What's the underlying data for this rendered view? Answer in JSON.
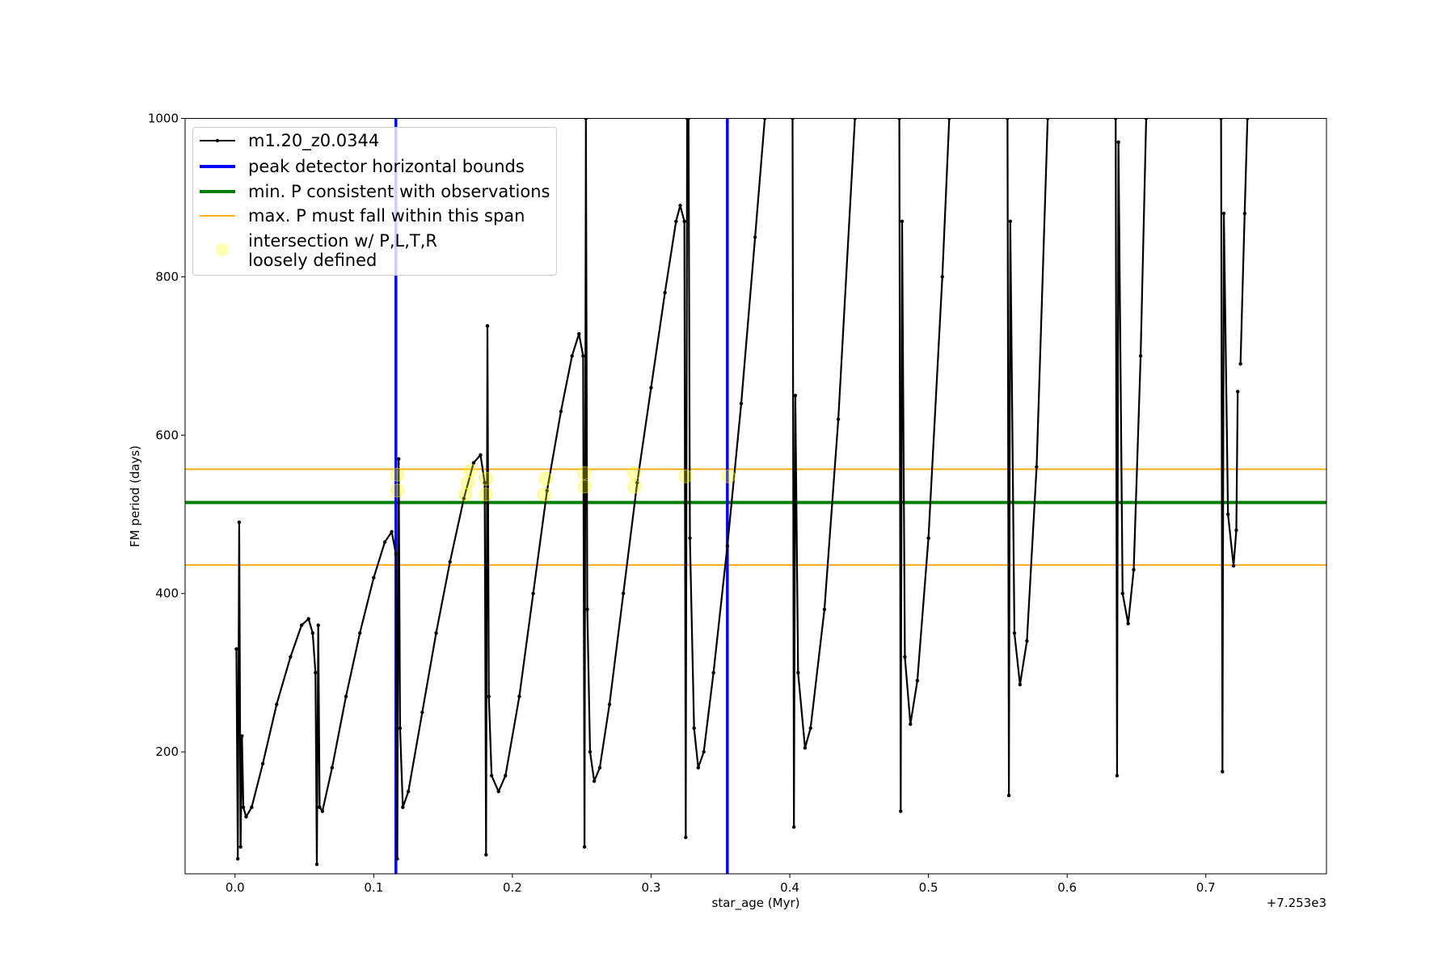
{
  "chart_data": {
    "type": "line",
    "x_label": "star_age (Myr)",
    "y_label": "FM period (days)",
    "x_offset_label": "+7.253e3",
    "xlim": [
      -0.036,
      0.787
    ],
    "ylim": [
      46,
      1000
    ],
    "xticks": [
      {
        "value": 0,
        "label": "0.0"
      },
      0.1,
      0.2,
      0.3,
      0.4,
      0.5,
      0.6,
      0.7
    ],
    "yticks": [
      200,
      400,
      600,
      800,
      1000
    ],
    "series": [
      {
        "name": "m1.20_z0.0344",
        "color": "#000000",
        "kind": "line",
        "x": [
          0.001,
          0.002,
          0.003,
          0.004,
          0.005,
          0.006,
          0.008,
          0.012,
          0.02,
          0.03,
          0.04,
          0.048,
          0.053,
          0.056,
          0.058,
          0.059,
          0.06,
          0.061,
          0.063,
          0.07,
          0.08,
          0.09,
          0.1,
          0.108,
          0.113,
          0.116,
          0.117,
          0.118,
          0.119,
          0.121,
          0.125,
          0.135,
          0.145,
          0.155,
          0.165,
          0.172,
          0.177,
          0.18,
          0.181,
          0.182,
          0.183,
          0.185,
          0.19,
          0.195,
          0.205,
          0.215,
          0.225,
          0.235,
          0.243,
          0.248,
          0.251,
          0.252,
          0.253,
          null,
          0.253,
          0.254,
          0.256,
          0.259,
          0.263,
          0.27,
          0.28,
          0.29,
          0.3,
          0.31,
          0.318,
          0.321,
          0.324,
          0.325,
          0.326,
          null,
          0.327,
          0.328,
          0.331,
          0.334,
          0.338,
          0.345,
          0.355,
          0.365,
          0.375,
          0.382,
          null,
          0.402,
          0.403,
          0.404,
          0.406,
          0.411,
          0.415,
          0.425,
          0.435,
          0.447,
          null,
          0.479,
          0.48,
          0.481,
          0.483,
          0.487,
          0.492,
          0.5,
          0.51,
          0.515,
          null,
          0.557,
          0.558,
          0.559,
          0.562,
          0.566,
          0.571,
          0.578,
          0.586,
          null,
          0.635,
          0.636,
          0.637,
          0.64,
          0.644,
          0.648,
          0.653,
          0.657,
          null,
          0.711,
          0.712,
          0.713,
          0.716,
          0.72,
          0.722,
          0.723,
          null,
          0.725,
          0.728,
          0.73
        ],
        "values": [
          330,
          65,
          490,
          80,
          220,
          130,
          118,
          130,
          185,
          260,
          320,
          360,
          368,
          350,
          300,
          58,
          360,
          130,
          125,
          180,
          270,
          350,
          420,
          465,
          478,
          450,
          65,
          570,
          230,
          130,
          150,
          250,
          350,
          440,
          520,
          565,
          575,
          540,
          70,
          738,
          270,
          170,
          150,
          170,
          270,
          400,
          530,
          630,
          700,
          728,
          700,
          80,
          1000,
          null,
          1000,
          380,
          200,
          163,
          180,
          260,
          400,
          540,
          660,
          780,
          870,
          890,
          870,
          92,
          1000,
          null,
          1000,
          470,
          230,
          180,
          200,
          300,
          460,
          640,
          850,
          1000,
          null,
          1000,
          105,
          650,
          300,
          205,
          230,
          380,
          620,
          1000,
          null,
          1000,
          125,
          870,
          320,
          235,
          290,
          470,
          800,
          1000,
          null,
          1000,
          145,
          870,
          350,
          285,
          340,
          560,
          1000,
          null,
          1000,
          170,
          970,
          400,
          362,
          430,
          700,
          1000,
          null,
          1000,
          175,
          880,
          500,
          435,
          480,
          655,
          null,
          690,
          880,
          1000
        ]
      },
      {
        "name": "peak detector horizontal bounds",
        "color": "#0000ff",
        "kind": "vline",
        "x": [
          0.116,
          0.355
        ]
      },
      {
        "name": "min. P consistent with observations",
        "color": "#008000",
        "kind": "hline",
        "values": [
          515
        ]
      },
      {
        "name": "max. P must fall within this span",
        "color": "#ffa500",
        "kind": "hline",
        "values": [
          436,
          557
        ]
      },
      {
        "name": "intersection w/ P,L,T,R\nloosely defined",
        "color": "#ffff00",
        "kind": "scatter",
        "x": [
          0.117,
          0.117,
          0.166,
          0.168,
          0.17,
          0.181,
          0.181,
          0.223,
          0.224,
          0.252,
          0.252,
          0.288,
          0.288,
          0.325,
          0.356
        ],
        "values": [
          530,
          550,
          525,
          540,
          555,
          525,
          545,
          525,
          545,
          535,
          552,
          535,
          552,
          548,
          548
        ]
      }
    ]
  }
}
